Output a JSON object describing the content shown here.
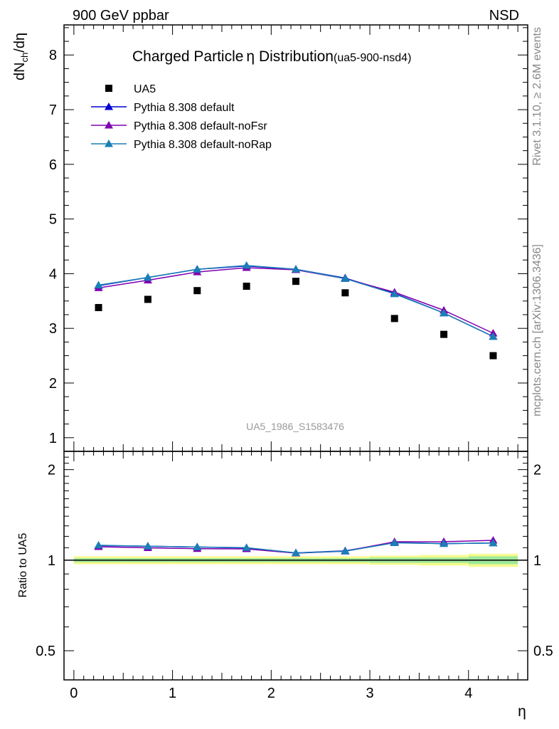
{
  "header": {
    "left": "900 GeV ppbar",
    "right": "NSD"
  },
  "side_labels": {
    "rivet": "Rivet 3.1.10, ≥ 2.6M events",
    "mcplots": "mcplots.cern.ch [arXiv:1306.3436]"
  },
  "chart_data": [
    {
      "type": "scatter",
      "panel": "main",
      "title": "Charged Particle",
      "title_symbol": "η",
      "title_rest": " Distribution",
      "subtitle": "(ua5-900-nsd4)",
      "ylabel": "dN",
      "ylabel_sub": "ch",
      "ylabel_rest": "/dη",
      "watermark": "UA5_1986_S1583476",
      "xlim": [
        -0.1,
        4.6
      ],
      "ylim": [
        0.75,
        8.55
      ],
      "yticks": [
        1,
        2,
        3,
        4,
        5,
        6,
        7,
        8
      ],
      "ytick_labels": [
        "1",
        "2",
        "3",
        "4",
        "5",
        "6",
        "7",
        "8"
      ],
      "x": [
        0.25,
        0.75,
        1.25,
        1.75,
        2.25,
        2.75,
        3.25,
        3.75,
        4.25
      ],
      "legend_position": "top-left",
      "series": [
        {
          "name": "UA5",
          "kind": "data",
          "color": "#000000",
          "values": [
            3.38,
            3.53,
            3.69,
            3.77,
            3.86,
            3.65,
            3.18,
            2.89,
            2.5
          ],
          "band": [
            0.04,
            0.04,
            0.05,
            0.05,
            0.05,
            0.05,
            0.05,
            0.09,
            0.11
          ]
        },
        {
          "name": "Pythia 8.308 default",
          "kind": "mc",
          "color": "#0000d0",
          "values": [
            3.78,
            3.93,
            4.08,
            4.14,
            4.08,
            3.92,
            3.64,
            3.28,
            2.85
          ]
        },
        {
          "name": "Pythia 8.308 default-noFsr",
          "kind": "mc",
          "color": "#8000b0",
          "values": [
            3.74,
            3.88,
            4.03,
            4.11,
            4.07,
            3.91,
            3.66,
            3.33,
            2.91
          ]
        },
        {
          "name": "Pythia 8.308 default-noRap",
          "kind": "mc",
          "color": "#1a7fb5",
          "values": [
            3.79,
            3.93,
            4.08,
            4.15,
            4.08,
            3.91,
            3.63,
            3.28,
            2.85
          ]
        }
      ]
    },
    {
      "type": "line",
      "panel": "ratio",
      "ylabel": "Ratio to UA5",
      "xlabel": "η",
      "xlim": [
        -0.1,
        4.6
      ],
      "ylim": [
        0.4,
        2.3
      ],
      "log_y": true,
      "xticks": [
        0,
        1,
        2,
        3,
        4
      ],
      "xtick_labels": [
        "0",
        "1",
        "2",
        "3",
        "4"
      ],
      "yticks": [
        0.5,
        1,
        2
      ],
      "ytick_labels": [
        "0.5",
        "1",
        "2"
      ],
      "x": [
        0.25,
        0.75,
        1.25,
        1.75,
        2.25,
        2.75,
        3.25,
        3.75,
        4.25
      ],
      "band_stat": [
        0.015,
        0.015,
        0.015,
        0.015,
        0.015,
        0.015,
        0.02,
        0.02,
        0.03
      ],
      "band_total": [
        0.03,
        0.03,
        0.03,
        0.03,
        0.03,
        0.03,
        0.035,
        0.04,
        0.05
      ],
      "series": [
        {
          "name": "Pythia 8.308 default",
          "color": "#0000d0",
          "values": [
            1.118,
            1.113,
            1.106,
            1.098,
            1.057,
            1.074,
            1.145,
            1.135,
            1.14
          ]
        },
        {
          "name": "Pythia 8.308 default-noFsr",
          "color": "#8000b0",
          "values": [
            1.108,
            1.099,
            1.092,
            1.09,
            1.055,
            1.071,
            1.151,
            1.152,
            1.164
          ]
        },
        {
          "name": "Pythia 8.308 default-noRap",
          "color": "#1a7fb5",
          "values": [
            1.121,
            1.113,
            1.106,
            1.101,
            1.057,
            1.071,
            1.142,
            1.135,
            1.14
          ]
        }
      ]
    }
  ]
}
